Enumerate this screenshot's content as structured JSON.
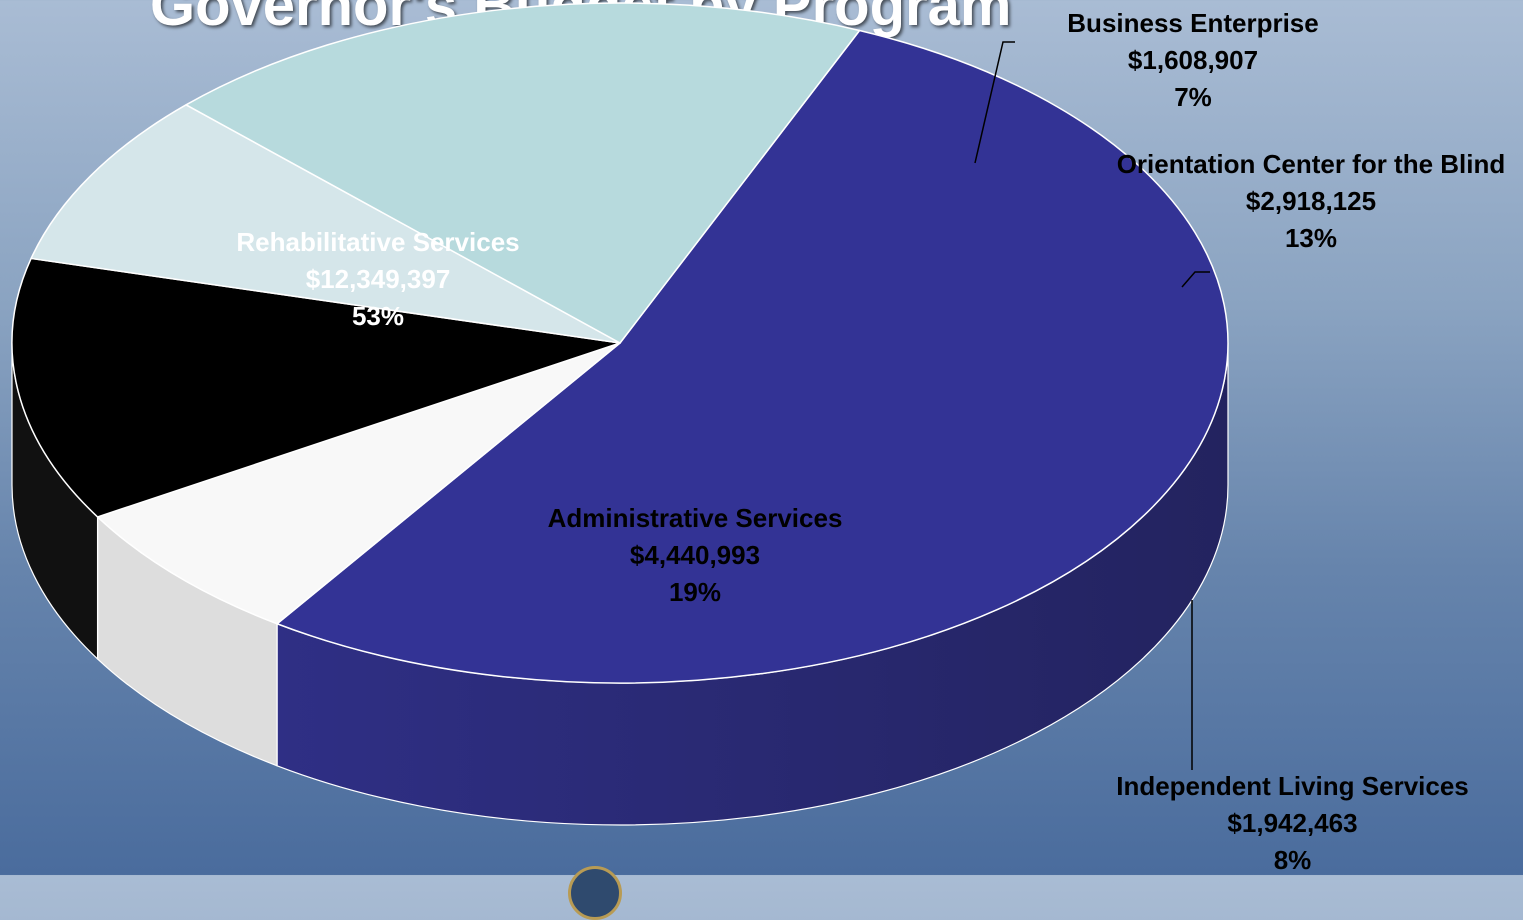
{
  "title": "Governor's Budget by Program",
  "chart_data": {
    "type": "pie",
    "title": "Governor's Budget by Program",
    "style": "3d-tilted",
    "slices": [
      {
        "name": "Rehabilitative Services",
        "amount": "$12,349,397",
        "percent": "53%",
        "value": 12349397,
        "color": "#333395"
      },
      {
        "name": "Business Enterprise",
        "amount": "$1,608,907",
        "percent": "7%",
        "value": 1608907,
        "color": "#f8f8f8"
      },
      {
        "name": "Orientation Center for the Blind",
        "amount": "$2,918,125",
        "percent": "13%",
        "value": 2918125,
        "color": "#000000"
      },
      {
        "name": "Independent Living Services",
        "amount": "$1,942,463",
        "percent": "8%",
        "value": 1942463,
        "color": "#d5e6ea"
      },
      {
        "name": "Administrative Services",
        "amount": "$4,440,993",
        "percent": "19%",
        "value": 4440993,
        "color": "#b7dadd"
      }
    ]
  }
}
